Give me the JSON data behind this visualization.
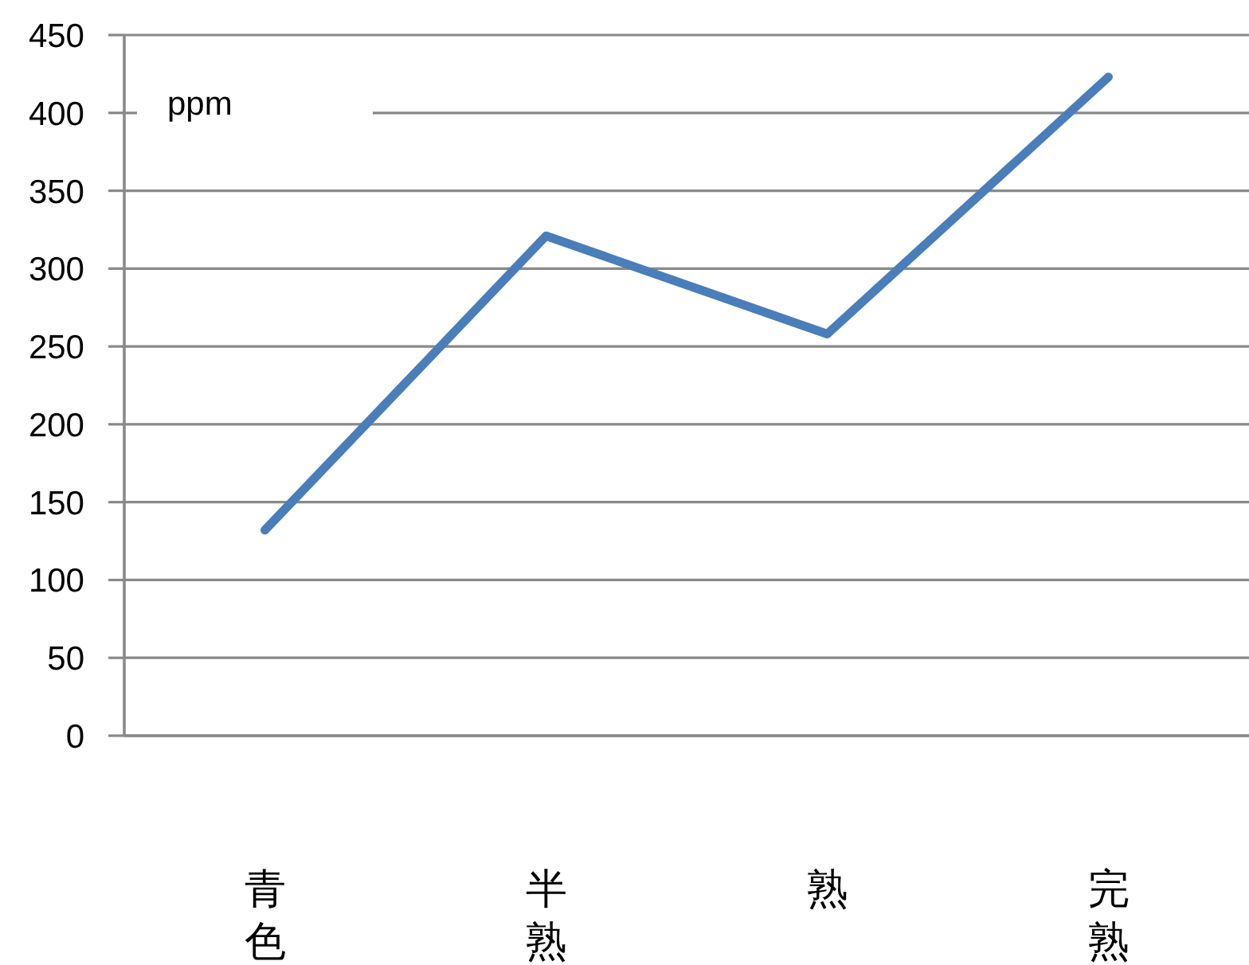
{
  "chart_data": {
    "type": "line",
    "ylabel": "ppm",
    "categories": [
      "青色",
      "半熟",
      "熟",
      "完熟"
    ],
    "series": [
      {
        "color": "#4a7ebb",
        "values": [
          132,
          321,
          258,
          423
        ]
      }
    ],
    "ylim": [
      0,
      450
    ],
    "yticks": [
      0,
      50,
      100,
      150,
      200,
      250,
      300,
      350,
      400,
      450
    ],
    "grid": "y",
    "marker": "none",
    "line_style": "solid"
  }
}
